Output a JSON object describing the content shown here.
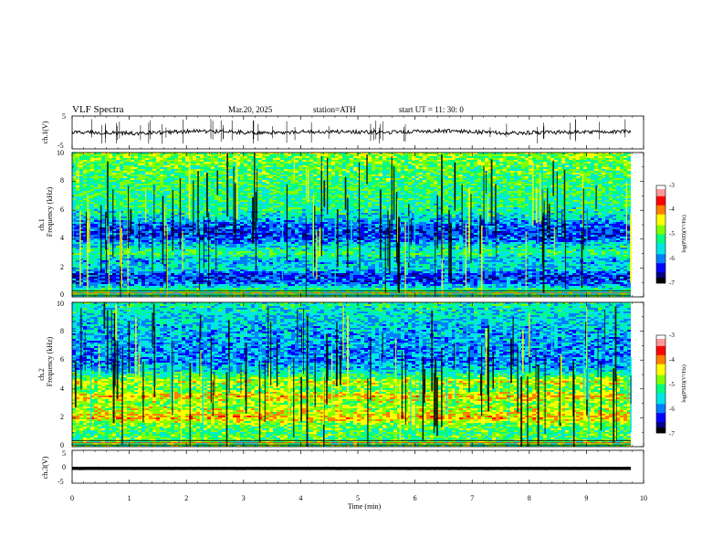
{
  "header": {
    "title": "VLF  Spectra",
    "date": "Mar.20, 2025",
    "station": "station=ATH",
    "start": "start  UT  =   11: 30: 0"
  },
  "chart_data": [
    {
      "type": "line",
      "panel": "ch1-waveform",
      "ylabel": "ch.1(V)",
      "ylim": [
        -5,
        5
      ],
      "yticks": [
        "5",
        "-5"
      ],
      "xlim": [
        0,
        10
      ],
      "series": [
        {
          "description_values": "noisy trace centered near 0 V",
          "values": [
            0.2,
            -0.3,
            0.4,
            -0.1,
            0.3,
            0.0,
            0.5,
            -0.2,
            0.1,
            0.3
          ]
        }
      ]
    },
    {
      "type": "heatmap",
      "panel": "ch1-spectrogram",
      "ylabel": "ch.1\nFrequency  (kHz)",
      "ylim": [
        0,
        10
      ],
      "yticks": [
        "0",
        "2",
        "4",
        "6",
        "8",
        "10"
      ],
      "xlim": [
        0,
        10
      ],
      "colorbar": {
        "label": "log(PSD)(V²/Hz)",
        "range": [
          -7,
          -3
        ],
        "ticks": [
          "-3",
          "-4",
          "-5",
          "-6",
          "-7"
        ]
      },
      "frequency_profile_khz": [
        0.5,
        1,
        1.5,
        2,
        2.5,
        3,
        3.5,
        4,
        4.5,
        5,
        5.5,
        6,
        7,
        8,
        9,
        9.8
      ],
      "level_log_psd": [
        -5.2,
        -6.2,
        -6.3,
        -5.6,
        -5.8,
        -5.2,
        -5.5,
        -6.2,
        -6.3,
        -6.1,
        -5.6,
        -5.3,
        -5.2,
        -5.1,
        -5.0,
        -4.8
      ]
    },
    {
      "type": "heatmap",
      "panel": "ch2-spectrogram",
      "ylabel": "ch.2\nFrequency  (kHz)",
      "ylim": [
        0,
        10
      ],
      "yticks": [
        "0",
        "2",
        "4",
        "6",
        "8",
        "10"
      ],
      "xlim": [
        0,
        10
      ],
      "colorbar": {
        "label": "log(PSD)(V²/Hz)",
        "range": [
          -7,
          -3
        ],
        "ticks": [
          "-3",
          "-4",
          "-5",
          "-6",
          "-7"
        ]
      },
      "frequency_profile_khz": [
        0.5,
        1,
        1.5,
        2,
        2.5,
        3,
        3.5,
        4,
        4.5,
        5,
        5.5,
        6,
        7,
        8,
        9,
        9.8
      ],
      "level_log_psd": [
        -5.0,
        -5.1,
        -4.9,
        -4.2,
        -4.6,
        -4.8,
        -4.3,
        -5.0,
        -4.5,
        -5.3,
        -5.8,
        -6.0,
        -5.9,
        -5.8,
        -5.6,
        -5.4
      ]
    },
    {
      "type": "line",
      "panel": "ch3-waveform",
      "ylabel": "ch.3(V)",
      "ylim": [
        -5,
        5
      ],
      "yticks": [
        "5",
        "0",
        "-5"
      ],
      "xlim": [
        0,
        10
      ],
      "xlabel": "Time  (min)",
      "xticks": [
        "0",
        "1",
        "2",
        "3",
        "4",
        "5",
        "6",
        "7",
        "8",
        "9",
        "10"
      ],
      "series": [
        {
          "values": [
            -0.5,
            -0.5,
            -0.5,
            -0.5,
            -0.5,
            -0.5,
            -0.5,
            -0.5,
            -0.5,
            -0.5
          ]
        }
      ]
    }
  ],
  "colors": {
    "palette": [
      "#000000",
      "#00007f",
      "#0000ff",
      "#007fff",
      "#00e5e5",
      "#00ff7f",
      "#7fff00",
      "#ffff00",
      "#ff7f00",
      "#ff0000",
      "#ff9999",
      "#ffffff"
    ]
  }
}
